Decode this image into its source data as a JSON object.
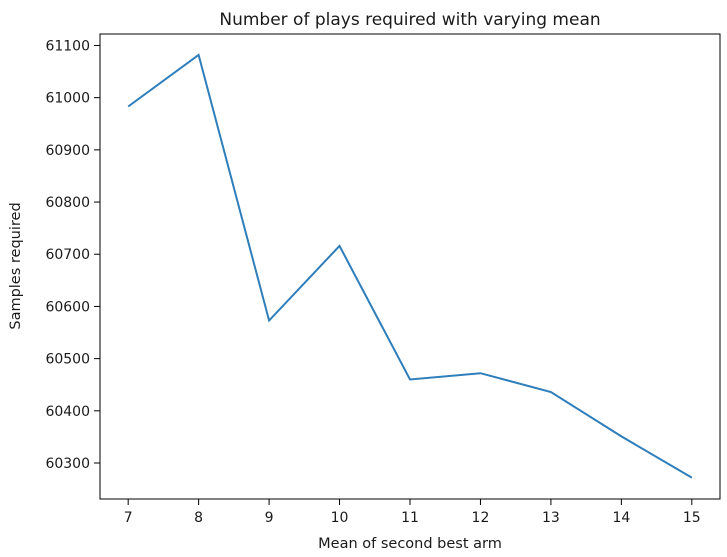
{
  "chart_data": {
    "type": "line",
    "title": "Number of plays required with varying mean",
    "xlabel": "Mean of second best arm",
    "ylabel": "Samples required",
    "x": [
      7,
      8,
      9,
      10,
      11,
      12,
      13,
      14,
      15
    ],
    "series": [
      {
        "values": [
          60983,
          61082,
          60573,
          60716,
          60460,
          60472,
          60436,
          60351,
          60272
        ],
        "color": "#2e7ebb"
      }
    ],
    "xticks": [
      7,
      8,
      9,
      10,
      11,
      12,
      13,
      14,
      15
    ],
    "yticks": [
      60300,
      60400,
      60500,
      60600,
      60700,
      60800,
      60900,
      61000,
      61100
    ],
    "xlim": [
      6.6,
      15.4
    ],
    "ylim": [
      60231,
      61122
    ],
    "grid": false,
    "legend": false
  }
}
